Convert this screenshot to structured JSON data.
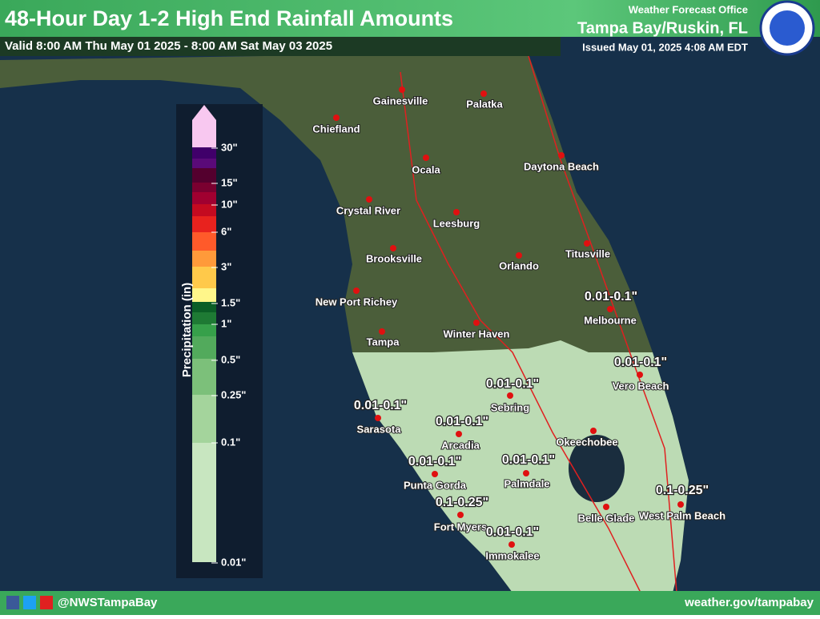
{
  "header": {
    "title": "48-Hour Day 1-2 High End Rainfall Amounts",
    "valid": "Valid 8:00 AM Thu May 01 2025 - 8:00 AM Sat May 03 2025",
    "office_line": "Weather Forecast Office",
    "office": "Tampa Bay/Ruskin, FL",
    "issued": "Issued May 01, 2025 4:08 AM EDT"
  },
  "legend": {
    "title": "Precipitation (in)",
    "labels": [
      "30\"",
      "15\"",
      "10\"",
      "6\"",
      "3\"",
      "1.5\"",
      "1\"",
      "0.5\"",
      "0.25\"",
      "0.1\"",
      "0.01\""
    ]
  },
  "cities": [
    "Gainesville",
    "Palatka",
    "Chiefland",
    "Ocala",
    "Daytona Beach",
    "Crystal River",
    "Leesburg",
    "Brooksville",
    "Orlando",
    "Titusville",
    "New Port Richey",
    "Melbourne",
    "Winter Haven",
    "Tampa",
    "Vero Beach",
    "Sebring",
    "Sarasota",
    "Arcadia",
    "Okeechobee",
    "Punta Gorda",
    "Palmdale",
    "Fort Myers",
    "Belle Glade",
    "West Palm Beach",
    "Immokalee"
  ],
  "amounts": [
    "0.01-0.1\"",
    "0.01-0.1\"",
    "0.01-0.1\"",
    "0.01-0.1\"",
    "0.01-0.1\"",
    "0.01-0.1\"",
    "0.01-0.1\"",
    "0.1-0.25\"",
    "0.01-0.1\"",
    "0.1-0.25\""
  ],
  "footer": {
    "handle": "@NWSTampaBay",
    "url": "weather.gov/tampabay"
  }
}
